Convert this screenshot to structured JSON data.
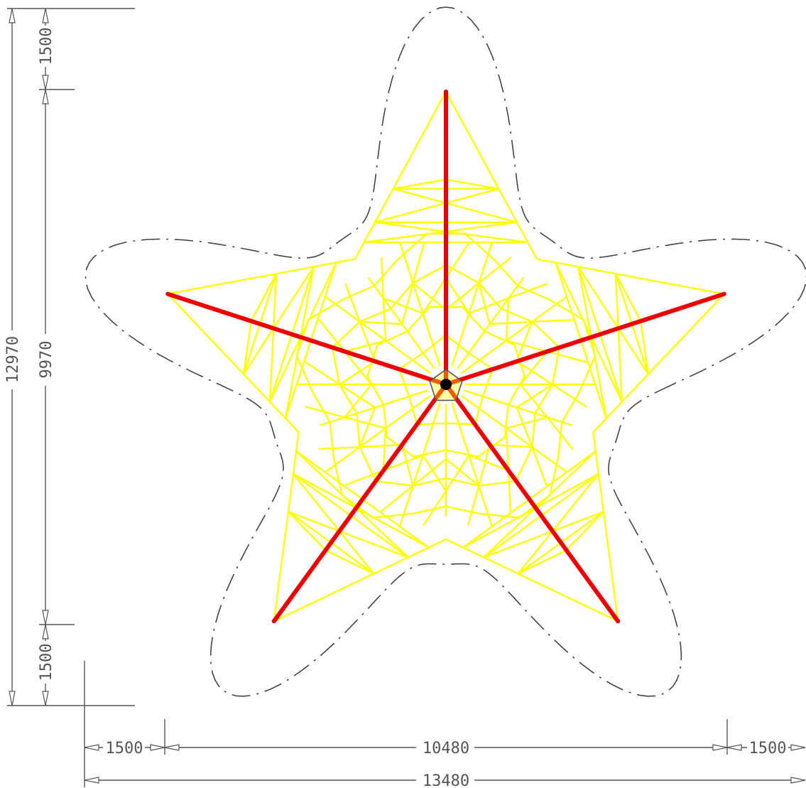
{
  "colors": {
    "net": "#ffff00",
    "posts": "#ee0000",
    "hub": "#000000",
    "safety_zone": "#444444",
    "dimension": "#555555"
  },
  "dimensions": {
    "total_height": "12970",
    "net_height": "9970",
    "top_clearance": "1500",
    "bottom_clearance": "1500",
    "net_width": "10480",
    "left_clearance": "1500",
    "right_clearance": "1500",
    "total_width": "13480"
  }
}
